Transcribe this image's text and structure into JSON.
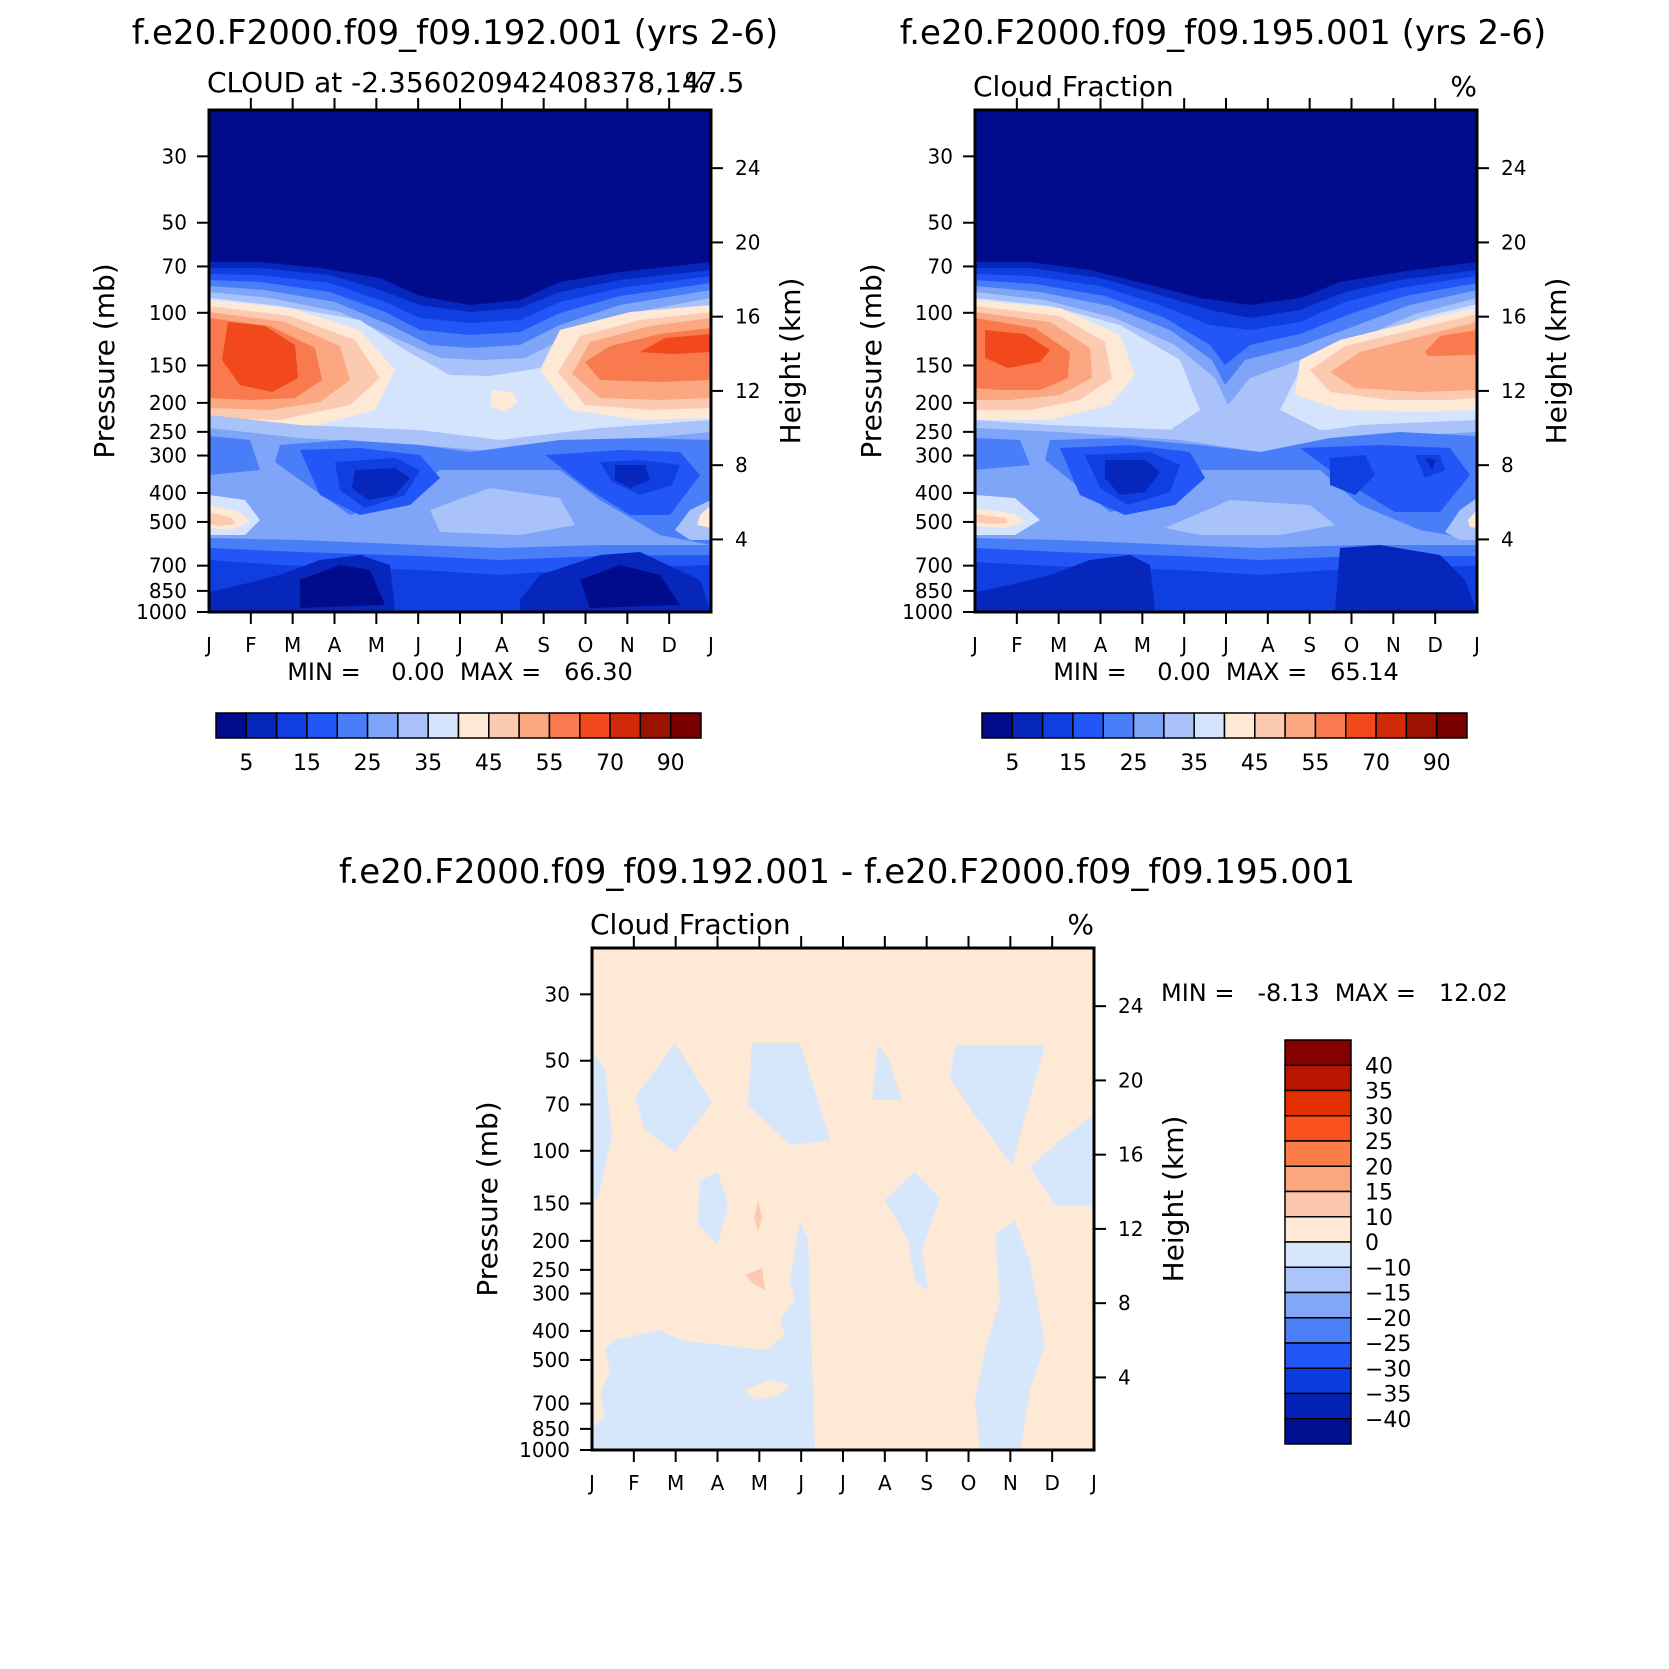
{
  "panels": [
    {
      "case_title": "f.e20.F2000.f09_f09.192.001 (yrs 2-6)",
      "left_title": "CLOUD at -2.356020942408378,147.5",
      "right_title": "%",
      "stats": "MIN =    0.00  MAX =   66.30"
    },
    {
      "case_title": "f.e20.F2000.f09_f09.195.001 (yrs 2-6)",
      "left_title": "Cloud Fraction",
      "right_title": "%",
      "stats": "MIN =    0.00  MAX =   65.14"
    },
    {
      "case_title": "f.e20.F2000.f09_f09.192.001 - f.e20.F2000.f09_f09.195.001",
      "left_title": "Cloud Fraction",
      "right_title": "%",
      "stats": "MIN =   -8.13  MAX =   12.02"
    }
  ],
  "axes": {
    "ylabel_left": "Pressure (mb)",
    "ylabel_right": "Height (km)"
  },
  "chart_data": [
    {
      "type": "heatmap",
      "title": "CLOUD at -2.356020942408378,147.5",
      "months": [
        "J",
        "F",
        "M",
        "A",
        "M",
        "J",
        "J",
        "A",
        "S",
        "O",
        "N",
        "D",
        "J"
      ],
      "pressure_ticks": [
        30,
        50,
        70,
        100,
        150,
        200,
        250,
        300,
        400,
        500,
        700,
        850,
        1000
      ],
      "height_ticks": [
        4,
        8,
        12,
        16,
        20,
        24
      ],
      "ylabel_left": "Pressure (mb)",
      "ylabel_right": "Height (km)",
      "colorbar_labels": [
        "5",
        "15",
        "25",
        "35",
        "45",
        "55",
        "70",
        "90"
      ],
      "min": 0.0,
      "max": 66.3
    },
    {
      "type": "heatmap",
      "title": "Cloud Fraction",
      "months": [
        "J",
        "F",
        "M",
        "A",
        "M",
        "J",
        "J",
        "A",
        "S",
        "O",
        "N",
        "D",
        "J"
      ],
      "pressure_ticks": [
        30,
        50,
        70,
        100,
        150,
        200,
        250,
        300,
        400,
        500,
        700,
        850,
        1000
      ],
      "height_ticks": [
        4,
        8,
        12,
        16,
        20,
        24
      ],
      "ylabel_left": "Pressure (mb)",
      "ylabel_right": "Height (km)",
      "colorbar_labels": [
        "5",
        "15",
        "25",
        "35",
        "45",
        "55",
        "70",
        "90"
      ],
      "min": 0.0,
      "max": 65.14
    },
    {
      "type": "heatmap",
      "title": "Cloud Fraction",
      "months": [
        "J",
        "F",
        "M",
        "A",
        "M",
        "J",
        "J",
        "A",
        "S",
        "O",
        "N",
        "D",
        "J"
      ],
      "pressure_ticks": [
        30,
        50,
        70,
        100,
        150,
        200,
        250,
        300,
        400,
        500,
        700,
        850,
        1000
      ],
      "height_ticks": [
        4,
        8,
        12,
        16,
        20,
        24
      ],
      "ylabel_left": "Pressure (mb)",
      "ylabel_right": "Height (km)",
      "colorbar_labels": [
        "40",
        "35",
        "30",
        "25",
        "20",
        "15",
        "10",
        "0",
        "-10",
        "-15",
        "-20",
        "-25",
        "-30",
        "-35",
        "-40"
      ],
      "min": -8.13,
      "max": 12.02
    }
  ],
  "colors": {
    "seq_palette": [
      "#000c8c",
      "#0726bb",
      "#0f3fe0",
      "#2356f6",
      "#4a7ef8",
      "#7fa5f8",
      "#a9c3fa",
      "#d4e4fc",
      "#fde9d6",
      "#fccab0",
      "#fba882",
      "#f97a4f",
      "#f1481c",
      "#d02a0a",
      "#9b1300",
      "#780000"
    ],
    "div_palette": [
      "#870000",
      "#b81500",
      "#e33000",
      "#f8511d",
      "#fa7c47",
      "#fba77e",
      "#fcc6ac",
      "#fde9d6",
      "#d6e7fc",
      "#abc4fa",
      "#82a7f8",
      "#4d80f8",
      "#2356f6",
      "#0c3cdf",
      "#0421b5",
      "#00108f"
    ]
  }
}
